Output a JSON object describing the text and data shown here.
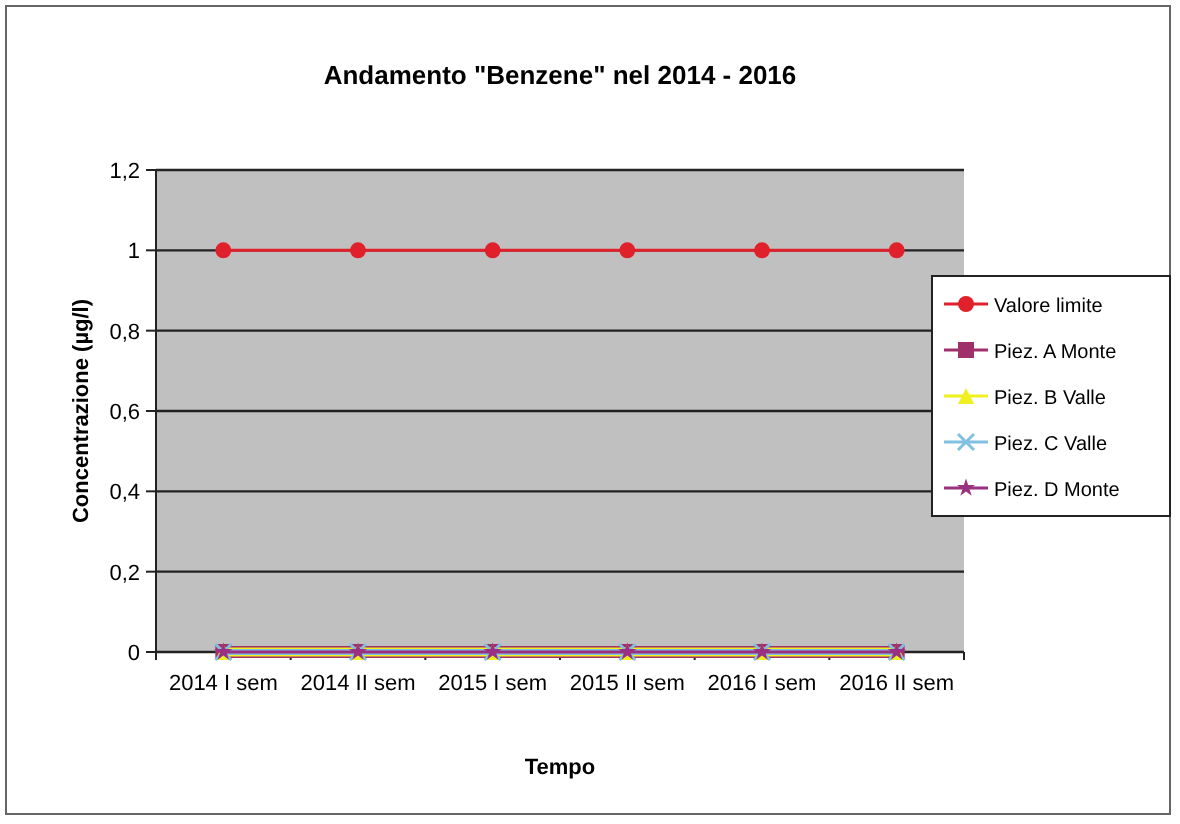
{
  "chart_data": {
    "type": "line",
    "title": "Andamento \"Benzene\" nel 2014 - 2016",
    "xlabel": "Tempo",
    "ylabel": "Concentrazione (µg/l)",
    "categories": [
      "2014 I sem",
      "2014 II sem",
      "2015 I sem",
      "2015 II sem",
      "2016 I sem",
      "2016 II sem"
    ],
    "series": [
      {
        "name": "Valore limite",
        "color": "#e0202a",
        "marker": "circle",
        "values": [
          1,
          1,
          1,
          1,
          1,
          1
        ]
      },
      {
        "name": "Piez. A Monte",
        "color": "#a0306a",
        "marker": "square",
        "values": [
          0,
          0,
          0,
          0,
          0,
          0
        ]
      },
      {
        "name": "Piez. B Valle",
        "color": "#f0f020",
        "marker": "triangle",
        "values": [
          0,
          0,
          0,
          0,
          0,
          0
        ]
      },
      {
        "name": "Piez. C Valle",
        "color": "#80c0e0",
        "marker": "cross",
        "values": [
          0,
          0,
          0,
          0,
          0,
          0
        ]
      },
      {
        "name": "Piez. D Monte",
        "color": "#9a3080",
        "marker": "star",
        "values": [
          0,
          0,
          0,
          0,
          0,
          0
        ]
      }
    ],
    "ylim": [
      0,
      1.2
    ],
    "yticks": [
      0,
      {
        "value": 0.2,
        "label": "0,2"
      },
      {
        "value": 0.4,
        "label": "0,4"
      },
      {
        "value": 0.6,
        "label": "0,6"
      },
      {
        "value": 0.8,
        "label": "0,8"
      },
      1,
      {
        "value": 1.2,
        "label": "1,2"
      }
    ],
    "grid": "y",
    "legend": "right"
  }
}
